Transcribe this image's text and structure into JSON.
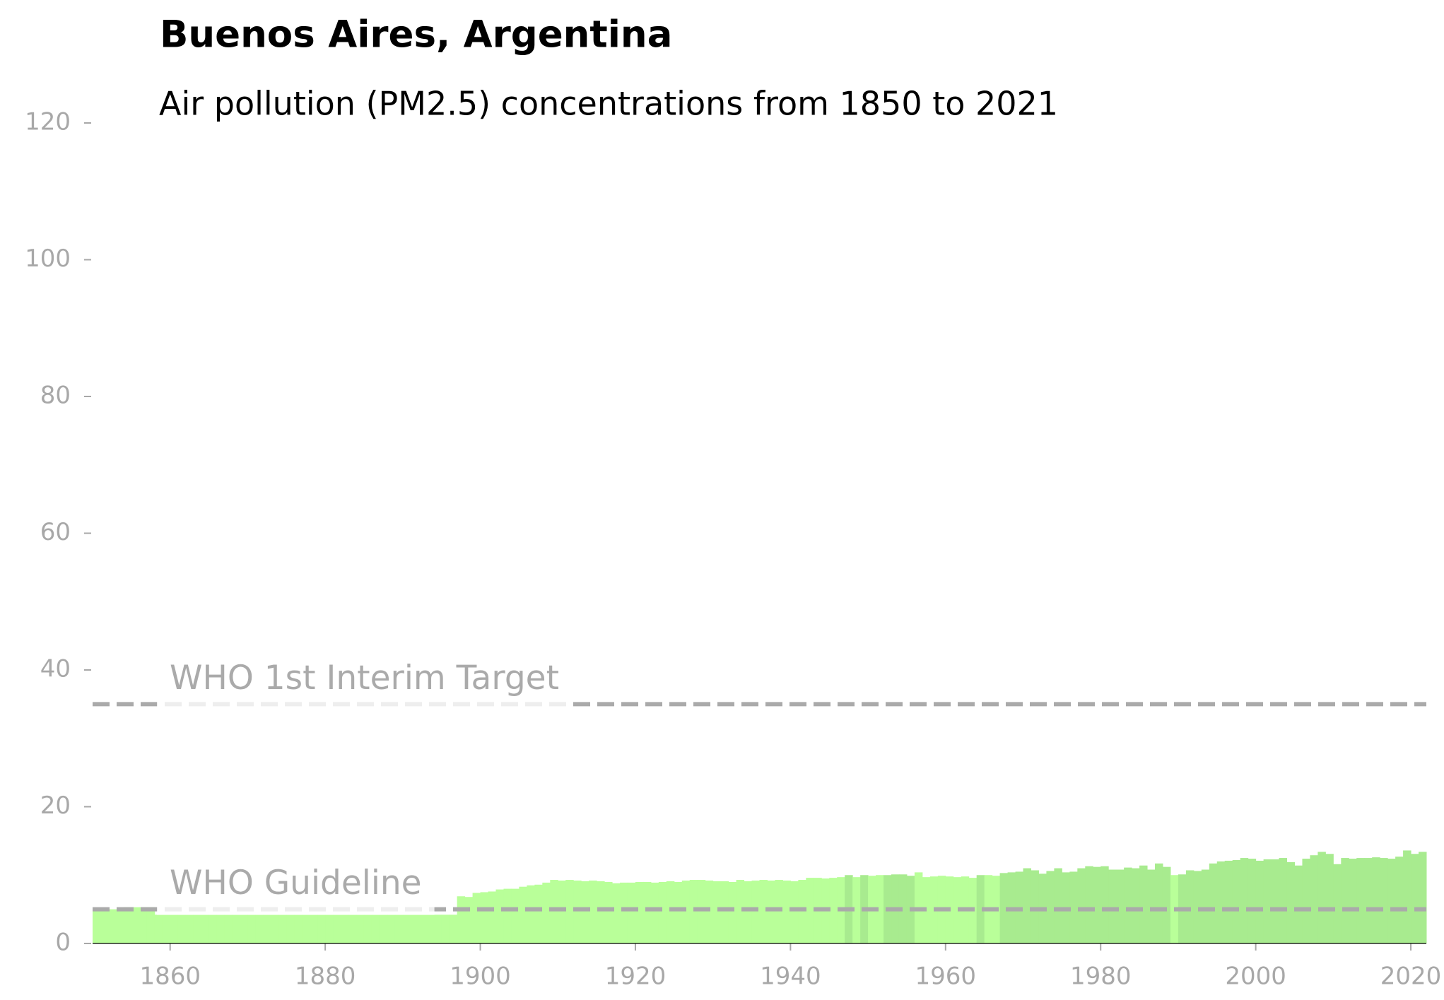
{
  "chart_data": {
    "type": "bar",
    "title": "Buenos Aires, Argentina",
    "subtitle": "Air pollution (PM2.5) concentrations from 1850 to 2021",
    "x": [
      1850,
      1851,
      1852,
      1853,
      1854,
      1855,
      1856,
      1857,
      1858,
      1859,
      1860,
      1861,
      1862,
      1863,
      1864,
      1865,
      1866,
      1867,
      1868,
      1869,
      1870,
      1871,
      1872,
      1873,
      1874,
      1875,
      1876,
      1877,
      1878,
      1879,
      1880,
      1881,
      1882,
      1883,
      1884,
      1885,
      1886,
      1887,
      1888,
      1889,
      1890,
      1891,
      1892,
      1893,
      1894,
      1895,
      1896,
      1897,
      1898,
      1899,
      1900,
      1901,
      1902,
      1903,
      1904,
      1905,
      1906,
      1907,
      1908,
      1909,
      1910,
      1911,
      1912,
      1913,
      1914,
      1915,
      1916,
      1917,
      1918,
      1919,
      1920,
      1921,
      1922,
      1923,
      1924,
      1925,
      1926,
      1927,
      1928,
      1929,
      1930,
      1931,
      1932,
      1933,
      1934,
      1935,
      1936,
      1937,
      1938,
      1939,
      1940,
      1941,
      1942,
      1943,
      1944,
      1945,
      1946,
      1947,
      1948,
      1949,
      1950,
      1951,
      1952,
      1953,
      1954,
      1955,
      1956,
      1957,
      1958,
      1959,
      1960,
      1961,
      1962,
      1963,
      1964,
      1965,
      1966,
      1967,
      1968,
      1969,
      1970,
      1971,
      1972,
      1973,
      1974,
      1975,
      1976,
      1977,
      1978,
      1979,
      1980,
      1981,
      1982,
      1983,
      1984,
      1985,
      1986,
      1987,
      1988,
      1989,
      1990,
      1991,
      1992,
      1993,
      1994,
      1995,
      1996,
      1997,
      1998,
      1999,
      2000,
      2001,
      2002,
      2003,
      2004,
      2005,
      2006,
      2007,
      2008,
      2009,
      2010,
      2011,
      2012,
      2013,
      2014,
      2015,
      2016,
      2017,
      2018,
      2019,
      2020,
      2021
    ],
    "values": [
      5.0,
      5.0,
      5.0,
      5.0,
      5.3,
      5.3,
      5.3,
      5.3,
      4.2,
      4.2,
      4.2,
      4.2,
      4.2,
      4.2,
      4.2,
      4.2,
      4.2,
      4.2,
      4.2,
      4.2,
      4.2,
      4.2,
      4.2,
      4.2,
      4.2,
      4.2,
      4.2,
      4.2,
      4.2,
      4.2,
      4.2,
      4.2,
      4.2,
      4.2,
      4.2,
      4.2,
      4.2,
      4.2,
      4.2,
      4.2,
      4.2,
      4.2,
      4.2,
      4.2,
      4.2,
      4.2,
      4.2,
      6.9,
      6.8,
      7.4,
      7.5,
      7.6,
      7.9,
      8.0,
      8.0,
      8.3,
      8.5,
      8.6,
      8.9,
      9.3,
      9.2,
      9.3,
      9.2,
      9.1,
      9.2,
      9.1,
      9.0,
      8.8,
      8.9,
      8.9,
      9.0,
      9.0,
      8.9,
      9.0,
      9.1,
      9.0,
      9.2,
      9.3,
      9.3,
      9.2,
      9.1,
      9.1,
      9.0,
      9.3,
      9.1,
      9.2,
      9.3,
      9.2,
      9.3,
      9.2,
      9.1,
      9.3,
      9.6,
      9.6,
      9.5,
      9.6,
      9.7,
      10.0,
      9.7,
      10.0,
      9.9,
      10.0,
      10.0,
      10.1,
      10.1,
      9.9,
      10.4,
      9.7,
      9.8,
      9.9,
      9.8,
      9.7,
      9.8,
      9.6,
      10.0,
      10.0,
      9.9,
      10.3,
      10.4,
      10.5,
      11.0,
      10.7,
      10.2,
      10.6,
      11.0,
      10.4,
      10.5,
      11.0,
      11.3,
      11.2,
      11.3,
      10.8,
      10.8,
      11.1,
      11.0,
      11.4,
      10.8,
      11.7,
      11.2,
      10.0,
      10.1,
      10.7,
      10.6,
      10.8,
      11.7,
      12.0,
      12.1,
      12.2,
      12.5,
      12.4,
      12.1,
      12.3,
      12.3,
      12.5,
      11.9,
      11.4,
      12.4,
      12.9,
      13.4,
      13.1,
      11.6,
      12.5,
      12.4,
      12.5,
      12.5,
      12.6,
      12.5,
      12.4,
      12.7,
      13.6,
      13.1,
      13.4
    ],
    "colors": [
      "#b9ff99",
      "#b9ff99",
      "#b9ff99",
      "#b9ff99",
      "#b9ff99",
      "#b9ff99",
      "#b9ff99",
      "#b9ff99",
      "#b9ff99",
      "#b9ff99",
      "#b9ff99",
      "#b9ff99",
      "#b9ff99",
      "#b9ff99",
      "#b9ff99",
      "#b9ff99",
      "#b9ff99",
      "#b9ff99",
      "#b9ff99",
      "#b9ff99",
      "#b9ff99",
      "#b9ff99",
      "#b9ff99",
      "#b9ff99",
      "#b9ff99",
      "#b9ff99",
      "#b9ff99",
      "#b9ff99",
      "#b9ff99",
      "#b9ff99",
      "#b9ff99",
      "#b9ff99",
      "#b9ff99",
      "#b9ff99",
      "#b9ff99",
      "#b9ff99",
      "#b9ff99",
      "#b9ff99",
      "#b9ff99",
      "#b9ff99",
      "#b9ff99",
      "#b9ff99",
      "#b9ff99",
      "#b9ff99",
      "#b9ff99",
      "#b9ff99",
      "#b9ff99",
      "#b9ff99",
      "#b9ff99",
      "#b9ff99",
      "#b9ff99",
      "#b9ff99",
      "#b9ff99",
      "#b9ff99",
      "#b9ff99",
      "#b9ff99",
      "#b9ff99",
      "#b9ff99",
      "#b9ff99",
      "#b9ff99",
      "#b9ff99",
      "#b9ff99",
      "#b9ff99",
      "#b9ff99",
      "#b9ff99",
      "#b9ff99",
      "#b9ff99",
      "#b9ff99",
      "#b9ff99",
      "#b9ff99",
      "#b9ff99",
      "#b9ff99",
      "#b9ff99",
      "#b9ff99",
      "#b9ff99",
      "#b9ff99",
      "#b9ff99",
      "#b9ff99",
      "#b9ff99",
      "#b9ff99",
      "#b9ff99",
      "#b9ff99",
      "#b9ff99",
      "#b9ff99",
      "#b9ff99",
      "#b9ff99",
      "#b9ff99",
      "#b9ff99",
      "#b9ff99",
      "#b9ff99",
      "#b9ff99",
      "#b9ff99",
      "#b9ff99",
      "#b9ff99",
      "#b9ff99",
      "#b9ff99",
      "#b9ff99",
      "#a8eb8f",
      "#b9ff99",
      "#a8eb8f",
      "#b9ff99",
      "#b9ff99",
      "#a8eb8f",
      "#a8eb8f",
      "#a8eb8f",
      "#a8eb8f",
      "#b9ff99",
      "#b9ff99",
      "#b9ff99",
      "#b9ff99",
      "#b9ff99",
      "#b9ff99",
      "#b9ff99",
      "#b9ff99",
      "#a8eb8f",
      "#b9ff99",
      "#b9ff99",
      "#a8eb8f",
      "#a8eb8f",
      "#a8eb8f",
      "#a8eb8f",
      "#a8eb8f",
      "#a8eb8f",
      "#a8eb8f",
      "#a8eb8f",
      "#a8eb8f",
      "#a8eb8f",
      "#a8eb8f",
      "#a8eb8f",
      "#a8eb8f",
      "#a8eb8f",
      "#a8eb8f",
      "#a8eb8f",
      "#a8eb8f",
      "#a8eb8f",
      "#a8eb8f",
      "#a8eb8f",
      "#a8eb8f",
      "#a8eb8f",
      "#b9ff99",
      "#a8eb8f",
      "#a8eb8f",
      "#a8eb8f",
      "#a8eb8f",
      "#a8eb8f",
      "#a8eb8f",
      "#a8eb8f",
      "#a8eb8f",
      "#a8eb8f",
      "#a8eb8f",
      "#a8eb8f",
      "#a8eb8f",
      "#a8eb8f",
      "#a8eb8f",
      "#a8eb8f",
      "#a8eb8f",
      "#a8eb8f",
      "#a8eb8f",
      "#a8eb8f",
      "#a8eb8f",
      "#a8eb8f",
      "#a8eb8f",
      "#a8eb8f",
      "#a8eb8f",
      "#a8eb8f",
      "#a8eb8f",
      "#a8eb8f",
      "#a8eb8f",
      "#a8eb8f",
      "#a8eb8f",
      "#a8eb8f",
      "#a8eb8f"
    ],
    "reference_lines": [
      {
        "value": 35,
        "label": "WHO 1st Interim Target"
      },
      {
        "value": 5,
        "label": "WHO Guideline"
      }
    ],
    "reference_color": "#aaaaaa",
    "xlim": [
      1850,
      2022
    ],
    "xticks": [
      1860,
      1880,
      1900,
      1920,
      1940,
      1960,
      1980,
      2000,
      2020
    ],
    "ylim": [
      0,
      120
    ],
    "yticks": [
      0,
      20,
      40,
      60,
      80,
      100,
      120
    ],
    "grid": false
  }
}
